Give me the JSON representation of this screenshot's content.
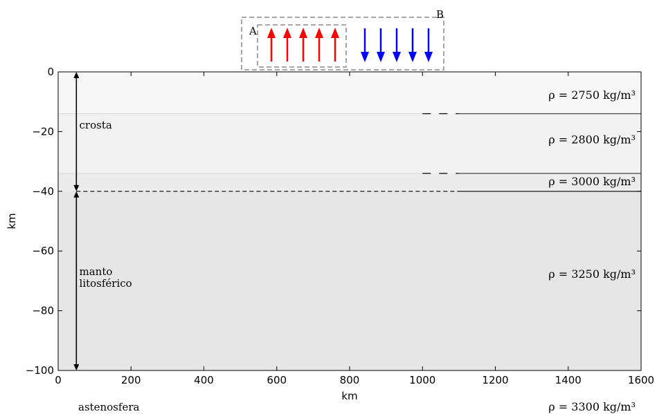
{
  "chart_data": {
    "type": "diagram",
    "xlabel": "km",
    "ylabel": "km",
    "xlim": [
      0,
      1600
    ],
    "ylim": [
      -100,
      0
    ],
    "x_ticks": [
      "0",
      "200",
      "400",
      "600",
      "800",
      "1000",
      "1200",
      "1400",
      "1600"
    ],
    "y_ticks": [
      "0",
      "−20",
      "−40",
      "−60",
      "−80",
      "−100"
    ],
    "layers": [
      {
        "top": 0,
        "bottom": -14,
        "fill": "#f7f7f7",
        "density_label": "ρ = 2750 kg/m³",
        "label_depth": -9
      },
      {
        "top": -14,
        "bottom": -34,
        "fill": "#f2f2f2",
        "density_label": "ρ = 2800 kg/m³",
        "label_depth": -24
      },
      {
        "top": -34,
        "bottom": -40,
        "fill": "#ececec",
        "density_label": "ρ = 3000 kg/m³",
        "label_depth": -38
      },
      {
        "top": -40,
        "bottom": -100,
        "fill": "#e6e6e6",
        "density_label": "ρ = 3250 kg/m³",
        "label_depth": -69
      }
    ],
    "boundaries": [
      {
        "depth": -14,
        "dash_from": 1000,
        "solid_from": 1100
      },
      {
        "depth": -34,
        "dash_from": 1000,
        "solid_from": 1100
      },
      {
        "depth": -40,
        "dash_from": 50,
        "solid_from": 1100
      }
    ],
    "region_labels": [
      {
        "text": "crosta",
        "x": 58,
        "depth": -19
      },
      {
        "text": "manto",
        "x": 58,
        "depth": -68
      },
      {
        "text": "litosférico",
        "x": 58,
        "depth": -72
      }
    ],
    "below_axis": {
      "asthenosphere_label": "astenosfera",
      "asthenosphere_density": "ρ = 3300 kg/m³"
    },
    "inset": {
      "label_a": "A",
      "label_b": "B",
      "up_arrows": 5,
      "down_arrows": 5,
      "up_color": "#ff0000",
      "down_color": "#0000ff"
    }
  }
}
